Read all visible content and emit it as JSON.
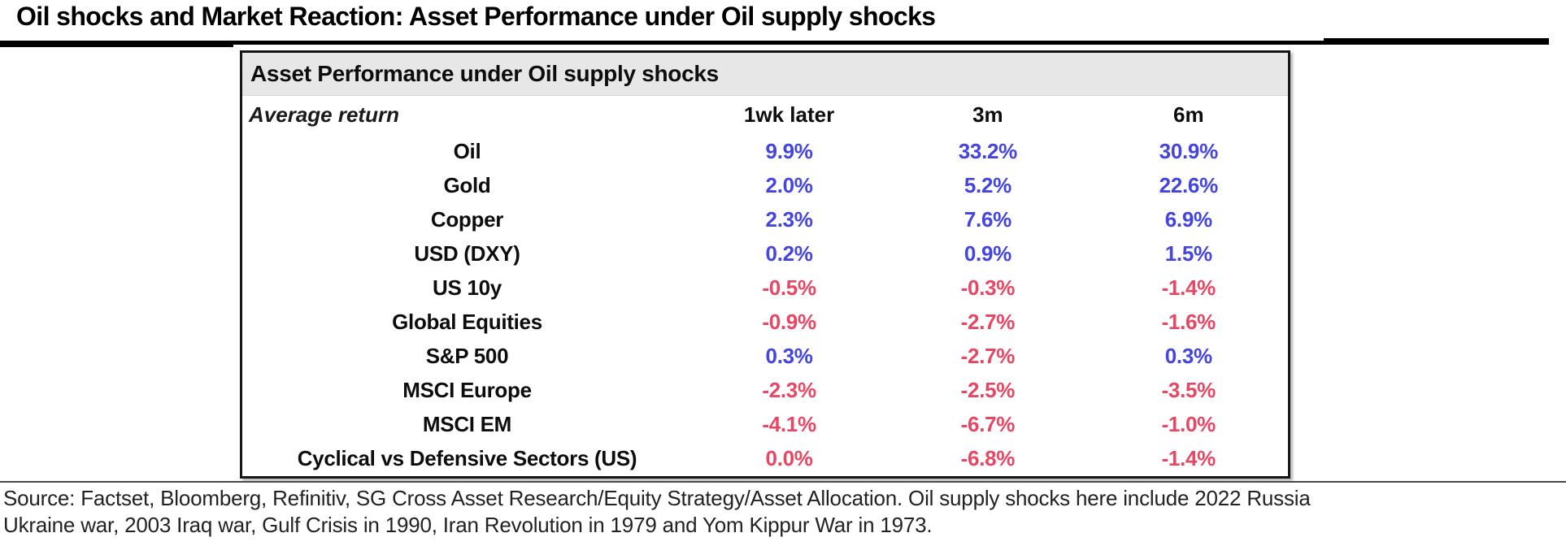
{
  "header": {
    "title": "Oil shocks and Market Reaction: Asset Performance under Oil supply shocks"
  },
  "colors": {
    "positive_value": "#4444e0",
    "negative_value": "#e94664",
    "table_header_band": "#e7e7e7",
    "table_border": "#161616"
  },
  "chart_data": {
    "type": "table",
    "title": "Asset Performance under Oil supply shocks",
    "row_header": "Average return",
    "columns": [
      "1wk later",
      "3m",
      "6m"
    ],
    "unit": "%",
    "rows": [
      {
        "asset": "Oil",
        "values": [
          9.9,
          33.2,
          30.9
        ]
      },
      {
        "asset": "Gold",
        "values": [
          2.0,
          5.2,
          22.6
        ]
      },
      {
        "asset": "Copper",
        "values": [
          2.3,
          7.6,
          6.9
        ]
      },
      {
        "asset": "USD (DXY)",
        "values": [
          0.2,
          0.9,
          1.5
        ]
      },
      {
        "asset": "US 10y",
        "values": [
          -0.5,
          -0.3,
          -1.4
        ]
      },
      {
        "asset": "Global Equities",
        "values": [
          -0.9,
          -2.7,
          -1.6
        ]
      },
      {
        "asset": "S&P 500",
        "values": [
          0.3,
          -2.7,
          0.3
        ]
      },
      {
        "asset": "MSCI Europe",
        "values": [
          -2.3,
          -2.5,
          -3.5
        ]
      },
      {
        "asset": "MSCI EM",
        "values": [
          -4.1,
          -6.7,
          -1.0
        ]
      },
      {
        "asset": "Cyclical vs Defensive Sectors (US)",
        "values": [
          0.0,
          -6.8,
          -1.4
        ]
      }
    ],
    "color_rule": "values greater than 0 shown in blue, values of 0 or less shown in red"
  },
  "footer": {
    "source_line1": "Source: Factset, Bloomberg, Refinitiv, SG Cross Asset Research/Equity Strategy/Asset Allocation. Oil supply shocks here include 2022 Russia",
    "source_line2": "Ukraine war, 2003 Iraq war, Gulf Crisis in 1990, Iran Revolution in 1979 and Yom Kippur War in 1973."
  }
}
